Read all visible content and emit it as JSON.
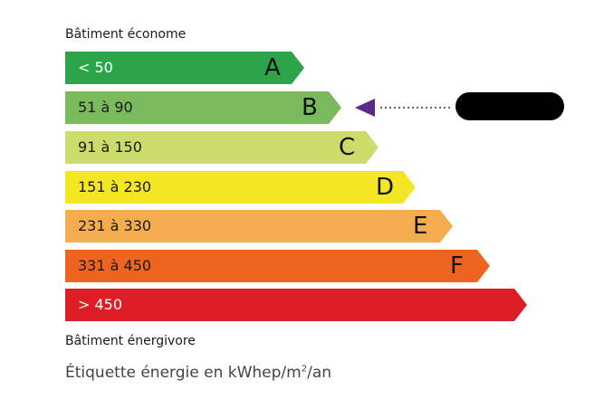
{
  "top_label": "Bâtiment économe",
  "bottom_label": "Bâtiment énergivore",
  "caption_pre": "Étiquette énergie en kWhep/m",
  "caption_sup": "2",
  "caption_post": "/an",
  "classes": [
    {
      "letter": "A",
      "range": "< 50",
      "color": "#2ca44a",
      "text_color": "#ffffff"
    },
    {
      "letter": "B",
      "range": "51 à 90",
      "color": "#7aba5c",
      "text_color": "#1a1a1a"
    },
    {
      "letter": "C",
      "range": "91 à 150",
      "color": "#cbdc6a",
      "text_color": "#1a1a1a"
    },
    {
      "letter": "D",
      "range": "151 à 230",
      "color": "#f3e625",
      "text_color": "#1a1a1a"
    },
    {
      "letter": "E",
      "range": "231 à 330",
      "color": "#f4ac4e",
      "text_color": "#1a1a1a"
    },
    {
      "letter": "F",
      "range": "331 à 450",
      "color": "#ec6420",
      "text_color": "#1a1a1a"
    },
    {
      "letter": "",
      "range": "> 450",
      "color": "#dc1e24",
      "text_color": "#ffffff"
    }
  ],
  "current_class": "B",
  "marker_color": "#5b2a86"
}
